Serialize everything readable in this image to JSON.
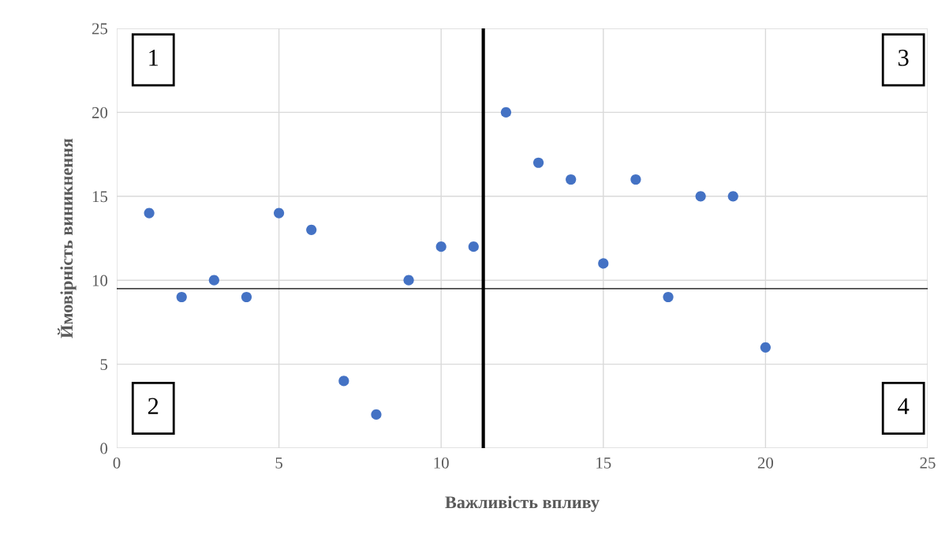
{
  "chart_data": {
    "type": "scatter",
    "xlabel": "Важливість впливу",
    "ylabel": "Ймовірність виникнення",
    "x": [
      1,
      2,
      3,
      4,
      5,
      6,
      7,
      8,
      9,
      10,
      11,
      12,
      13,
      14,
      15,
      16,
      17,
      18,
      19,
      20
    ],
    "series": [
      {
        "color": "#4472c4",
        "values": [
          14,
          9,
          10,
          9,
          14,
          13,
          4,
          2,
          10,
          12,
          12,
          20,
          17,
          16,
          11,
          16,
          9,
          15,
          15,
          6
        ]
      }
    ],
    "xlim": [
      0,
      25
    ],
    "xticks": [
      0,
      5,
      10,
      15,
      20,
      25
    ],
    "ylim": [
      0,
      25
    ],
    "yticks": [
      0,
      5,
      10,
      15,
      20,
      25
    ],
    "grid": true,
    "marker": "circle",
    "ref_lines": [
      {
        "axis": "x",
        "value": 11.3,
        "color": "#000000"
      },
      {
        "axis": "y",
        "value": 9.5,
        "color": "#000000"
      }
    ],
    "annotations": [
      "1",
      "2",
      "3",
      "4"
    ]
  }
}
